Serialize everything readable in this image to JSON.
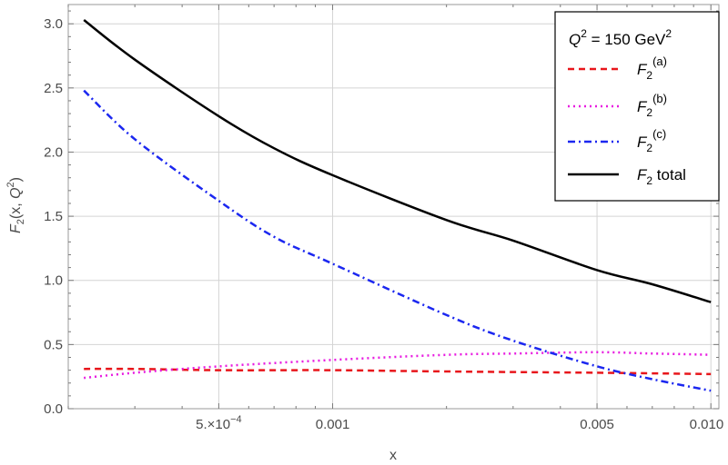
{
  "chart_data": {
    "type": "line",
    "xscale": "log",
    "xlim": [
      0.0002,
      0.0105
    ],
    "ylim": [
      0,
      3.15
    ],
    "xlabel": "x",
    "ylabel": "F2(x,Q2)",
    "x_ticks": [
      {
        "value": 0.0005,
        "label": "5.×10−4",
        "main": "5.×10",
        "sup": "−4"
      },
      {
        "value": 0.001,
        "label": "0.001"
      },
      {
        "value": 0.005,
        "label": "0.005"
      },
      {
        "value": 0.01,
        "label": "0.010"
      }
    ],
    "y_ticks": [
      {
        "value": 0.0,
        "label": "0.0"
      },
      {
        "value": 0.5,
        "label": "0.5"
      },
      {
        "value": 1.0,
        "label": "1.0"
      },
      {
        "value": 1.5,
        "label": "1.5"
      },
      {
        "value": 2.0,
        "label": "2.0"
      },
      {
        "value": 2.5,
        "label": "2.5"
      },
      {
        "value": 3.0,
        "label": "3.0"
      }
    ],
    "grid": true,
    "legend_position": "top-right",
    "legend_title": "Q2 = 150 GeV2",
    "series": [
      {
        "name": "F2(a)",
        "color": "#e8161b",
        "style": "dashed",
        "x": [
          0.00022,
          0.0003,
          0.0005,
          0.001,
          0.002,
          0.005,
          0.01
        ],
        "y": [
          0.31,
          0.31,
          0.3,
          0.3,
          0.29,
          0.28,
          0.27
        ]
      },
      {
        "name": "F2(b)",
        "color": "#e81be0",
        "style": "dotted",
        "x": [
          0.00022,
          0.0003,
          0.0005,
          0.001,
          0.002,
          0.003,
          0.005,
          0.007,
          0.01
        ],
        "y": [
          0.24,
          0.28,
          0.33,
          0.38,
          0.42,
          0.43,
          0.44,
          0.43,
          0.42
        ]
      },
      {
        "name": "F2(c)",
        "color": "#1b27f0",
        "style": "dashdot",
        "x": [
          0.00022,
          0.0003,
          0.0005,
          0.0007,
          0.001,
          0.002,
          0.003,
          0.005,
          0.007,
          0.01
        ],
        "y": [
          2.48,
          2.1,
          1.62,
          1.34,
          1.13,
          0.73,
          0.53,
          0.33,
          0.23,
          0.14
        ]
      },
      {
        "name": "F2 total",
        "color": "#000000",
        "style": "solid",
        "x": [
          0.00022,
          0.0003,
          0.0005,
          0.0007,
          0.001,
          0.002,
          0.003,
          0.005,
          0.007,
          0.01
        ],
        "y": [
          3.03,
          2.72,
          2.28,
          2.03,
          1.82,
          1.47,
          1.31,
          1.08,
          0.97,
          0.83
        ]
      }
    ]
  }
}
